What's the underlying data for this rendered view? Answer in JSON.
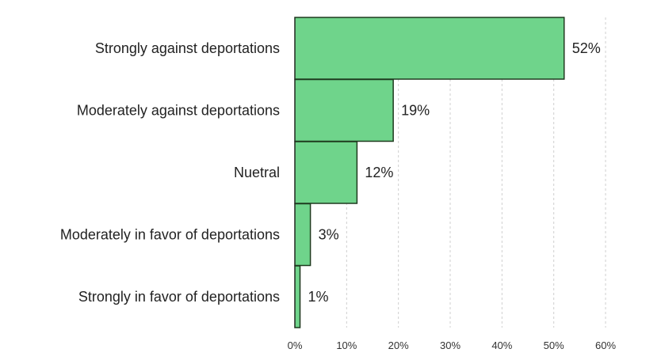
{
  "chart_data": {
    "type": "bar",
    "orientation": "horizontal",
    "categories": [
      "Strongly against deportations",
      "Moderately against deportations",
      "Nuetral ",
      "Moderately in favor of deportations",
      "Strongly in favor of deportations"
    ],
    "values": [
      52,
      19,
      12,
      3,
      1
    ],
    "data_labels": [
      "52%",
      "19%",
      "12%",
      "3%",
      "1%"
    ],
    "xlim": [
      0,
      60
    ],
    "xticks": [
      0,
      10,
      20,
      30,
      40,
      50,
      60
    ],
    "xtick_labels": [
      "0%",
      "10%",
      "20%",
      "30%",
      "40%",
      "50%",
      "60%"
    ],
    "bar_color": "#6fd48b",
    "bar_edge_color": "#1e3a1e",
    "grid": "vertical-dashed",
    "legend": "none",
    "title": "",
    "xlabel": "",
    "ylabel": ""
  }
}
